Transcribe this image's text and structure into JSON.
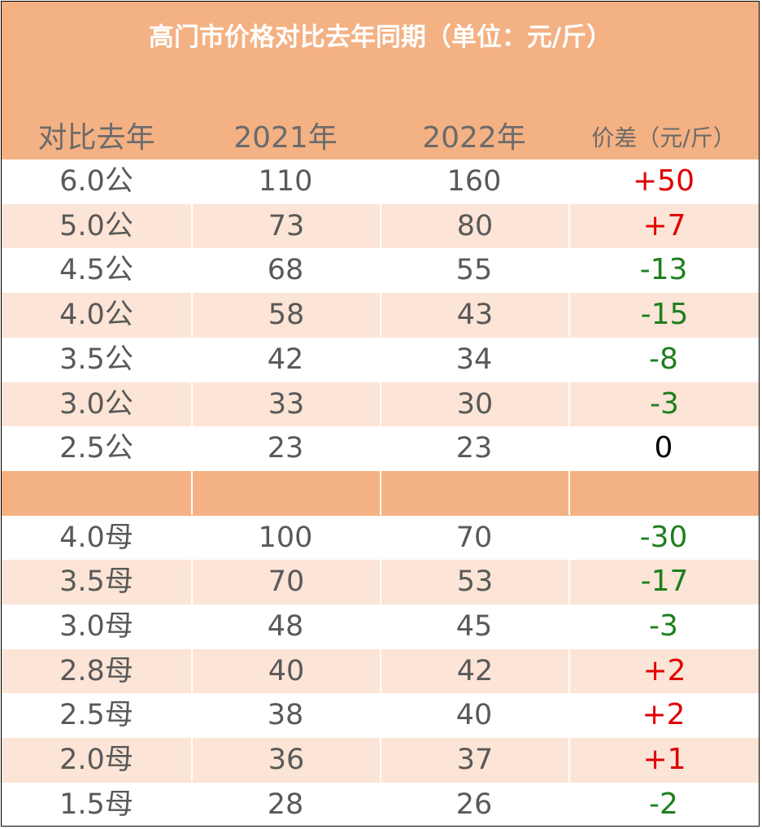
{
  "title": "高门市价格对比去年同期（单位：元/斤）",
  "headers": {
    "label": "对比去年",
    "y2021": "2021年",
    "y2022": "2022年",
    "diff": "价差（元/斤）"
  },
  "colors": {
    "header_bg": "#f4b183",
    "row_alt": "#fce4d6",
    "positive": "#e00000",
    "negative": "#1e7f1e",
    "zero": "#000000"
  },
  "rows": [
    {
      "spec": "6.0公",
      "y2021": "110",
      "y2022": "160",
      "diff": "+50",
      "sign": "pos",
      "shade": "w"
    },
    {
      "spec": "5.0公",
      "y2021": "73",
      "y2022": "80",
      "diff": "+7",
      "sign": "pos",
      "shade": "p"
    },
    {
      "spec": "4.5公",
      "y2021": "68",
      "y2022": "55",
      "diff": "-13",
      "sign": "neg",
      "shade": "w"
    },
    {
      "spec": "4.0公",
      "y2021": "58",
      "y2022": "43",
      "diff": "-15",
      "sign": "neg",
      "shade": "p"
    },
    {
      "spec": "3.5公",
      "y2021": "42",
      "y2022": "34",
      "diff": "-8",
      "sign": "neg",
      "shade": "w"
    },
    {
      "spec": "3.0公",
      "y2021": "33",
      "y2022": "30",
      "diff": "-3",
      "sign": "neg",
      "shade": "p"
    },
    {
      "spec": "2.5公",
      "y2021": "23",
      "y2022": "23",
      "diff": "0",
      "sign": "zero",
      "shade": "w"
    },
    {
      "spec": "",
      "y2021": "",
      "y2022": "",
      "diff": "",
      "sign": "zero",
      "shade": "sep"
    },
    {
      "spec": "4.0母",
      "y2021": "100",
      "y2022": "70",
      "diff": "-30",
      "sign": "neg",
      "shade": "w"
    },
    {
      "spec": "3.5母",
      "y2021": "70",
      "y2022": "53",
      "diff": "-17",
      "sign": "neg",
      "shade": "p"
    },
    {
      "spec": "3.0母",
      "y2021": "48",
      "y2022": "45",
      "diff": "-3",
      "sign": "neg",
      "shade": "w"
    },
    {
      "spec": "2.8母",
      "y2021": "40",
      "y2022": "42",
      "diff": "+2",
      "sign": "pos",
      "shade": "p"
    },
    {
      "spec": "2.5母",
      "y2021": "38",
      "y2022": "40",
      "diff": "+2",
      "sign": "pos",
      "shade": "w"
    },
    {
      "spec": "2.0母",
      "y2021": "36",
      "y2022": "37",
      "diff": "+1",
      "sign": "pos",
      "shade": "p"
    },
    {
      "spec": "1.5母",
      "y2021": "28",
      "y2022": "26",
      "diff": "-2",
      "sign": "neg",
      "shade": "w"
    }
  ]
}
